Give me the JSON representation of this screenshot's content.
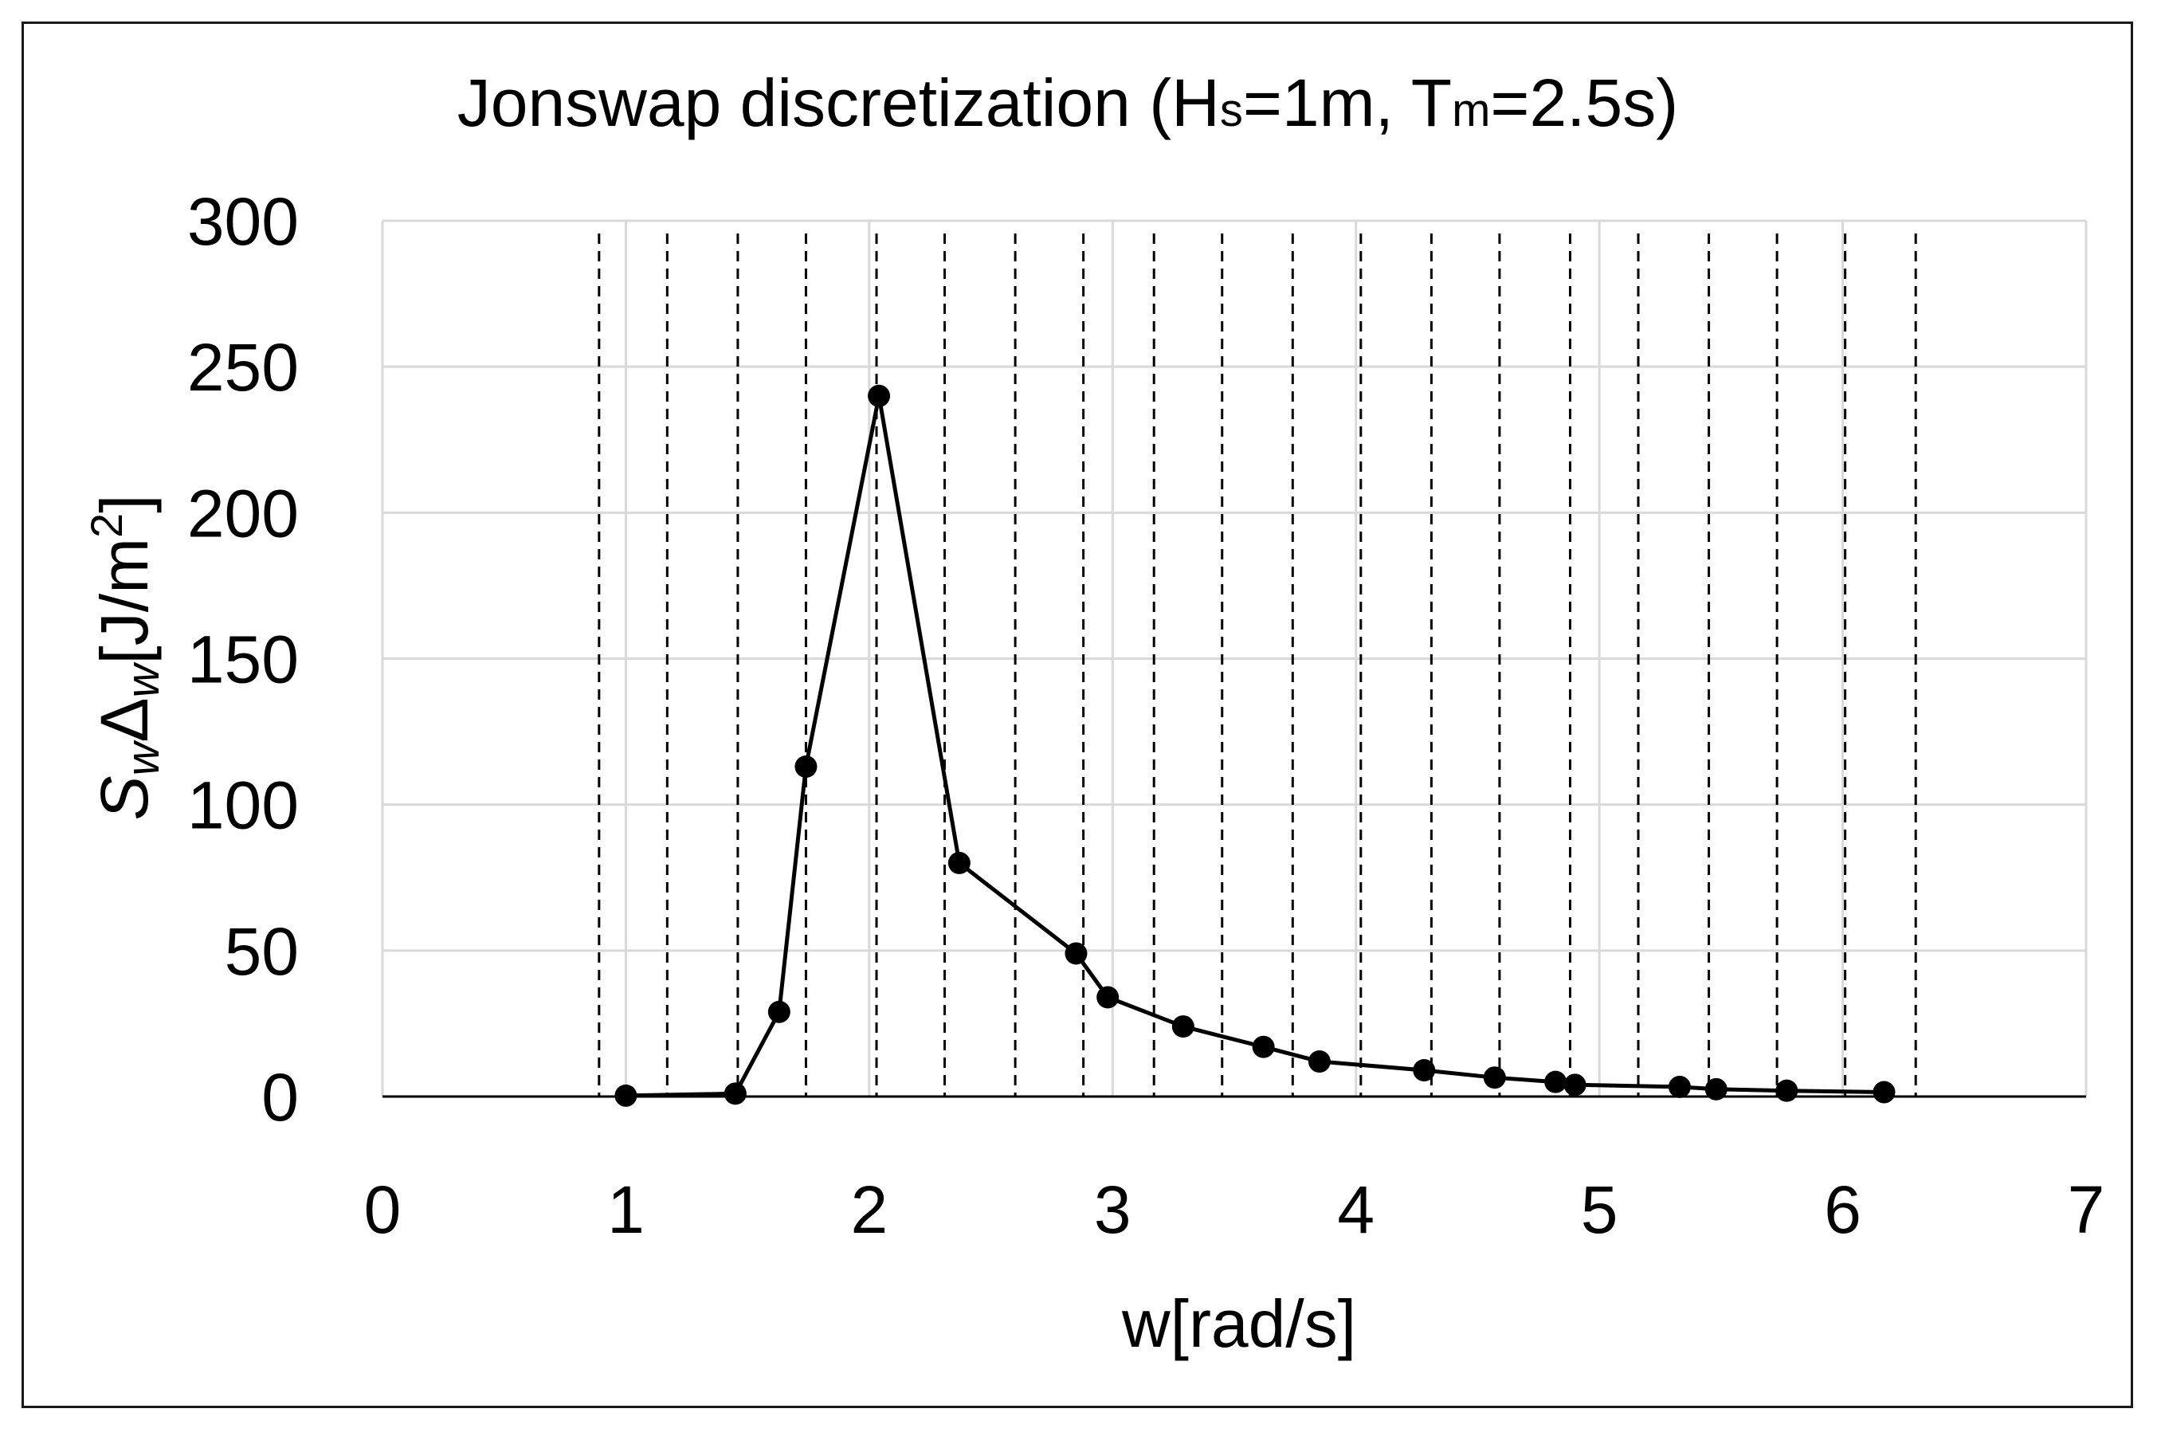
{
  "chart_data": {
    "type": "line",
    "title": {
      "prefix": "Jonswap discretization (H",
      "sub1": "s",
      "mid": "=1m, T",
      "sub2": "m",
      "suffix": "=2.5s)"
    },
    "xlabel": "w[rad/s]",
    "ylabel": {
      "s": "S",
      "sub_w1": "w",
      "delta": "Δ",
      "sub_w2": "w",
      "unit_open": "[J/m",
      "sup": "2",
      "unit_close": "]"
    },
    "xlim": [
      0,
      7
    ],
    "ylim": [
      0,
      300
    ],
    "x_ticks": [
      0,
      1,
      2,
      3,
      4,
      5,
      6,
      7
    ],
    "x_tick_labels": [
      "0",
      "1",
      "2",
      "3",
      "4",
      "5",
      "6",
      "7"
    ],
    "y_ticks": [
      0,
      50,
      100,
      150,
      200,
      250,
      300
    ],
    "y_tick_labels": [
      "0",
      "50",
      "100",
      "150",
      "200",
      "250",
      "300"
    ],
    "grid": true,
    "series": [
      {
        "line_color": "#000000",
        "marker": "circle",
        "x": [
          1.0,
          1.45,
          1.63,
          1.74,
          2.04,
          2.37,
          2.85,
          2.98,
          3.29,
          3.62,
          3.85,
          4.28,
          4.57,
          4.82,
          4.9,
          5.33,
          5.48,
          5.77,
          6.17
        ],
        "y": [
          0.3,
          1.0,
          29,
          113,
          240,
          80,
          49,
          34,
          24,
          17,
          12,
          9,
          6.5,
          5,
          4,
          3.3,
          2.5,
          2,
          1.5
        ]
      }
    ],
    "discretization_boundaries": [
      0.89,
      1.17,
      1.46,
      1.74,
      2.03,
      2.31,
      2.6,
      2.88,
      3.17,
      3.45,
      3.74,
      4.02,
      4.31,
      4.59,
      4.88,
      5.16,
      5.45,
      5.73,
      6.01,
      6.3
    ]
  }
}
